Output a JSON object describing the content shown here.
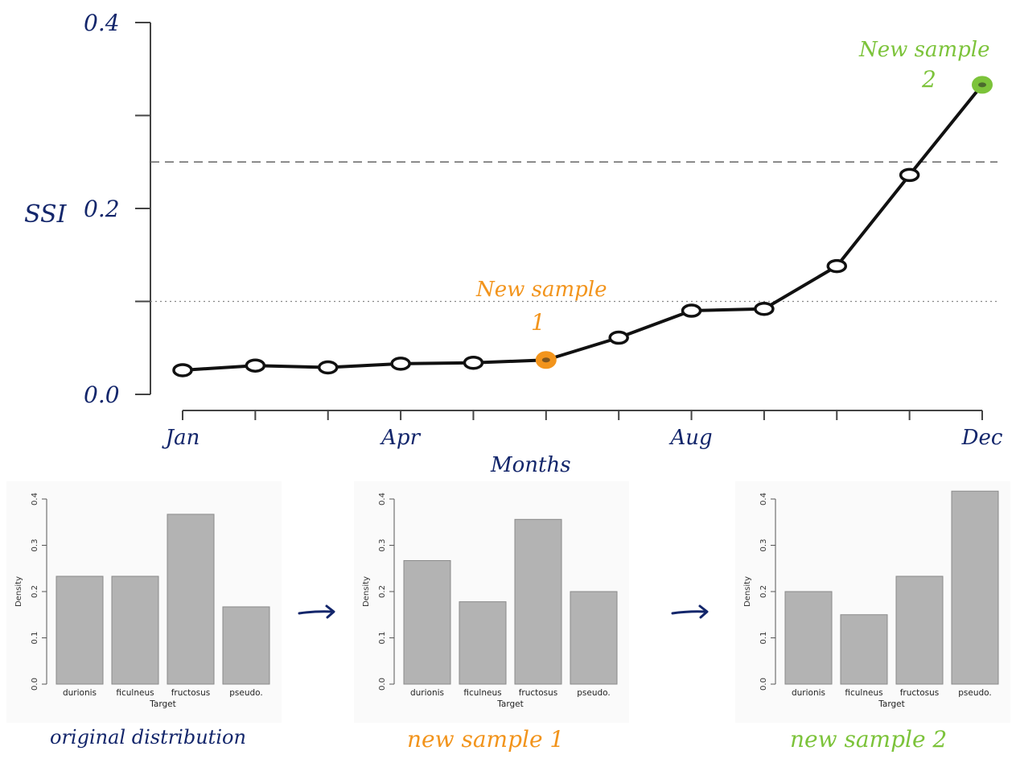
{
  "colors": {
    "ink": "#13266b",
    "line": "#111111",
    "sample1": "#f2941c",
    "sample2": "#7cc33a",
    "bar": "#b3b3b3"
  },
  "chart_data": [
    {
      "type": "line",
      "ylabel": "SSI",
      "xlabel": "Months",
      "ylim": [
        0.0,
        0.4
      ],
      "y_ticks": [
        0.0,
        0.1,
        0.2,
        0.3,
        0.4
      ],
      "y_tick_labels": [
        "0.0",
        "",
        "0.2",
        "",
        "0.4"
      ],
      "x_tick_labels": [
        "Jan",
        "",
        "",
        "Apr",
        "",
        "",
        "",
        "Aug",
        "",
        "",
        "",
        "Dec"
      ],
      "series": [
        {
          "values": [
            0.026,
            0.031,
            0.029,
            0.033,
            0.034,
            0.037,
            0.061,
            0.09,
            0.092,
            0.138,
            0.236,
            0.333
          ]
        }
      ],
      "reference_lines": [
        {
          "y": 0.25,
          "style": "dashed"
        },
        {
          "y": 0.1,
          "style": "dotted"
        }
      ],
      "annotations": [
        {
          "text_line1": "New sample",
          "text_line2": "1",
          "point_index": 5,
          "color": "#f2941c"
        },
        {
          "text_line1": "New sample",
          "text_line2": "2",
          "point_index": 11,
          "color": "#7cc33a"
        }
      ]
    },
    {
      "type": "bar",
      "categories": [
        "durionis",
        "ficulneus",
        "fructosus",
        "pseudo."
      ],
      "values": [
        0.233,
        0.233,
        0.367,
        0.167
      ],
      "xlabel": "Target",
      "ylabel": "Density",
      "ylim": [
        0.0,
        0.4
      ],
      "y_tick_labels": [
        "0.0",
        "0.1",
        "0.2",
        "0.3",
        "0.4"
      ],
      "caption": "original distribution"
    },
    {
      "type": "bar",
      "categories": [
        "durionis",
        "ficulneus",
        "fructosus",
        "pseudo."
      ],
      "values": [
        0.267,
        0.178,
        0.356,
        0.2
      ],
      "xlabel": "Target",
      "ylabel": "Density",
      "ylim": [
        0.0,
        0.4
      ],
      "y_tick_labels": [
        "0.0",
        "0.1",
        "0.2",
        "0.3",
        "0.4"
      ],
      "caption": "new sample 1"
    },
    {
      "type": "bar",
      "categories": [
        "durionis",
        "ficulneus",
        "fructosus",
        "pseudo."
      ],
      "values": [
        0.2,
        0.15,
        0.233,
        0.417
      ],
      "xlabel": "Target",
      "ylabel": "Density",
      "ylim": [
        0.0,
        0.4
      ],
      "y_tick_labels": [
        "0.0",
        "0.1",
        "0.2",
        "0.3",
        "0.4"
      ],
      "caption": "new sample 2"
    }
  ]
}
